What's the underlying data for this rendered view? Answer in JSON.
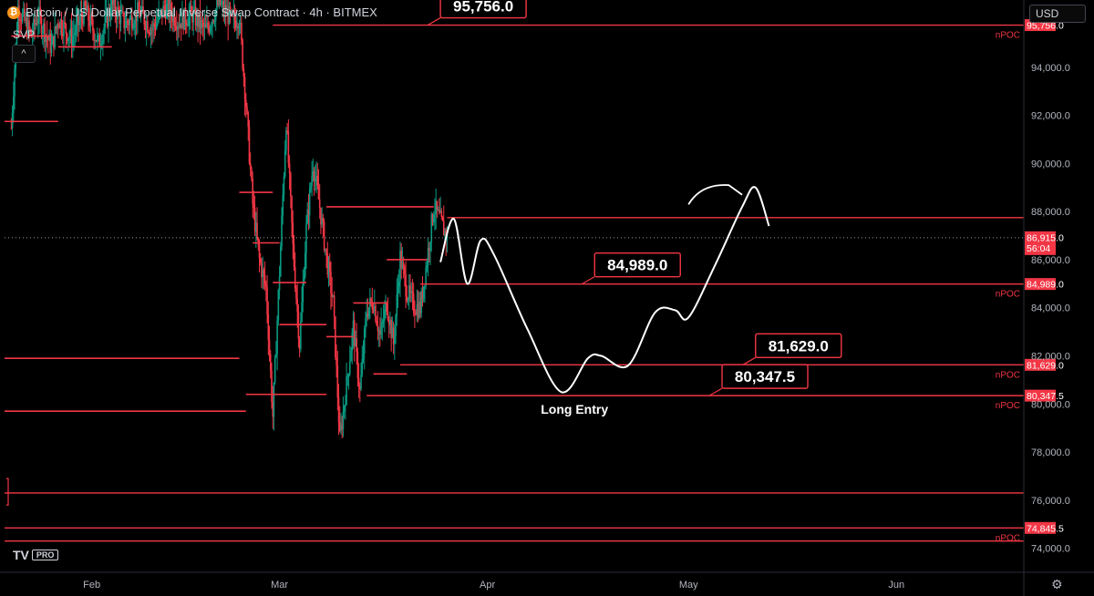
{
  "header": {
    "coin_glyph": "₿",
    "title": "Bitcoin / US Dollar Perpetual Inverse Swap Contract · 4h · BITMEX"
  },
  "indicator": {
    "label": "SVP",
    "collapse_glyph": "^"
  },
  "currency": {
    "label": "USD",
    "chevron": "⌄"
  },
  "logo": {
    "mark": "TV",
    "badge": "PRO"
  },
  "settings_icon": "⚙",
  "colors": {
    "background": "#000000",
    "level_line": "#f23645",
    "candle_up": "#089981",
    "candle_down": "#f23645",
    "projection": "#ffffff",
    "axis_text": "#b2b5be"
  },
  "chart_data": {
    "type": "candlestick",
    "timeframe": "4h",
    "exchange": "BITMEX",
    "y_axis": {
      "ticks": [
        "94,000.0",
        "92,000.0",
        "90,000.0",
        "88,000.0",
        "86,000.0",
        "84,000.0",
        "82,000.0",
        "80,000.0",
        "78,000.0",
        "76,000.0",
        "74,000.0"
      ],
      "tick_values": [
        94000,
        92000,
        90000,
        88000,
        86000,
        84000,
        82000,
        80000,
        78000,
        76000,
        74000
      ],
      "range": [
        73000,
        96800
      ]
    },
    "x_axis": {
      "ticks": [
        "Feb",
        "Mar",
        "Apr",
        "May",
        "Jun"
      ],
      "tick_dates": [
        "2025-02-01",
        "2025-03-01",
        "2025-04-01",
        "2025-05-01",
        "2025-06-01"
      ],
      "range": [
        "2025-01-19",
        "2025-06-20"
      ]
    },
    "current_price": {
      "value": 86915.0,
      "label": "86,915.0",
      "countdown": "56:04"
    },
    "levels": [
      {
        "value": 95756.0,
        "axis_label": "95,756.0",
        "tag": "nPOC",
        "callout": "95,756.0",
        "callout_date": "2025-03-25",
        "from_date": "2025-02-28"
      },
      {
        "value": 84989.0,
        "axis_label": "84,989.0",
        "tag": "nPOC",
        "callout": "84,989.0",
        "callout_date": "2025-04-17",
        "from_date": "2025-03-22"
      },
      {
        "value": 81629.0,
        "axis_label": "81,629.0",
        "tag": "nPOC",
        "callout": "81,629.0",
        "callout_date": "2025-05-11",
        "from_date": "2025-03-19"
      },
      {
        "value": 80347.5,
        "axis_label": "80,347.5",
        "tag": "nPOC",
        "callout": "80,347.5",
        "callout_date": "2025-05-06",
        "from_date": "2025-03-14"
      },
      {
        "value": 74845.5,
        "axis_label": "74,845.5",
        "tag": "nPOC",
        "callout": "",
        "from_date": "2025-01-19"
      }
    ],
    "resistance_line": {
      "value": 87750,
      "from_date": "2025-03-26"
    },
    "other_lines": [
      {
        "value": 76300,
        "from_date": "2025-01-19"
      },
      {
        "value": 74300,
        "from_date": "2025-01-19"
      }
    ],
    "svp_segments": [
      {
        "value": 95300,
        "from_date": "2025-01-20",
        "to_date": "2025-01-26"
      },
      {
        "value": 91750,
        "from_date": "2025-01-19",
        "to_date": "2025-01-27"
      },
      {
        "value": 94850,
        "from_date": "2025-01-27",
        "to_date": "2025-02-04"
      },
      {
        "value": 81900,
        "from_date": "2025-01-19",
        "to_date": "2025-02-23"
      },
      {
        "value": 79700,
        "from_date": "2025-01-19",
        "to_date": "2025-02-24"
      },
      {
        "value": 88800,
        "from_date": "2025-02-23",
        "to_date": "2025-02-28"
      },
      {
        "value": 86700,
        "from_date": "2025-02-25",
        "to_date": "2025-03-01"
      },
      {
        "value": 85050,
        "from_date": "2025-02-28",
        "to_date": "2025-03-05"
      },
      {
        "value": 80400,
        "from_date": "2025-02-24",
        "to_date": "2025-03-08"
      },
      {
        "value": 83300,
        "from_date": "2025-03-01",
        "to_date": "2025-03-08"
      },
      {
        "value": 88200,
        "from_date": "2025-03-08",
        "to_date": "2025-03-24"
      },
      {
        "value": 86000,
        "from_date": "2025-03-17",
        "to_date": "2025-03-23"
      },
      {
        "value": 84200,
        "from_date": "2025-03-12",
        "to_date": "2025-03-17"
      },
      {
        "value": 82800,
        "from_date": "2025-03-08",
        "to_date": "2025-03-12"
      },
      {
        "value": 81250,
        "from_date": "2025-03-15",
        "to_date": "2025-03-20"
      }
    ],
    "price_path": [
      [
        "2025-01-20",
        91500
      ],
      [
        "2025-01-21",
        96500
      ],
      [
        "2025-01-23",
        95300
      ],
      [
        "2025-01-24",
        96200
      ],
      [
        "2025-01-26",
        94800
      ],
      [
        "2025-01-27",
        96000
      ],
      [
        "2025-01-29",
        95200
      ],
      [
        "2025-01-31",
        96400
      ],
      [
        "2025-02-02",
        95000
      ],
      [
        "2025-02-04",
        96600
      ],
      [
        "2025-02-06",
        95800
      ],
      [
        "2025-02-08",
        96300
      ],
      [
        "2025-02-10",
        95600
      ],
      [
        "2025-02-12",
        96500
      ],
      [
        "2025-02-14",
        95900
      ],
      [
        "2025-02-16",
        96200
      ],
      [
        "2025-02-18",
        95500
      ],
      [
        "2025-02-20",
        96700
      ],
      [
        "2025-02-22",
        95900
      ],
      [
        "2025-02-23",
        96100
      ],
      [
        "2025-02-24",
        92500
      ],
      [
        "2025-02-25",
        88300
      ],
      [
        "2025-02-26",
        86000
      ],
      [
        "2025-02-27",
        84800
      ],
      [
        "2025-02-28",
        79500
      ],
      [
        "2025-03-01",
        85500
      ],
      [
        "2025-03-02",
        91800
      ],
      [
        "2025-03-03",
        86500
      ],
      [
        "2025-03-04",
        82500
      ],
      [
        "2025-03-05",
        87300
      ],
      [
        "2025-03-06",
        90000
      ],
      [
        "2025-03-07",
        88200
      ],
      [
        "2025-03-08",
        86100
      ],
      [
        "2025-03-09",
        84200
      ],
      [
        "2025-03-10",
        78500
      ],
      [
        "2025-03-11",
        80800
      ],
      [
        "2025-03-12",
        83200
      ],
      [
        "2025-03-13",
        80500
      ],
      [
        "2025-03-14",
        83900
      ],
      [
        "2025-03-15",
        84300
      ],
      [
        "2025-03-16",
        82800
      ],
      [
        "2025-03-17",
        84200
      ],
      [
        "2025-03-18",
        82500
      ],
      [
        "2025-03-19",
        86100
      ],
      [
        "2025-03-20",
        84700
      ],
      [
        "2025-03-21",
        84100
      ],
      [
        "2025-03-22",
        84000
      ],
      [
        "2025-03-23",
        86000
      ],
      [
        "2025-03-24",
        88200
      ],
      [
        "2025-03-25",
        87600
      ],
      [
        "2025-03-26",
        86900
      ]
    ],
    "projection": [
      [
        "2025-03-25",
        85900
      ],
      [
        "2025-03-27",
        87700
      ],
      [
        "2025-03-29",
        85000
      ],
      [
        "2025-03-31",
        86800
      ],
      [
        "2025-04-02",
        86200
      ],
      [
        "2025-04-07",
        83100
      ],
      [
        "2025-04-12",
        80500
      ],
      [
        "2025-04-16",
        81900
      ],
      [
        "2025-04-18",
        82000
      ],
      [
        "2025-04-22",
        81600
      ],
      [
        "2025-04-26",
        83800
      ],
      [
        "2025-04-29",
        83900
      ],
      [
        "2025-05-01",
        83600
      ],
      [
        "2025-05-05",
        85800
      ],
      [
        "2025-05-09",
        88200
      ],
      [
        "2025-05-11",
        89000
      ],
      [
        "2025-05-13",
        87400
      ]
    ],
    "projection_label": {
      "text": "Long Entry",
      "date": "2025-04-14",
      "value": 79600
    },
    "check_mark": [
      [
        "2025-05-01",
        88300
      ],
      [
        "2025-05-07",
        89100
      ],
      [
        "2025-05-09",
        88700
      ]
    ]
  }
}
